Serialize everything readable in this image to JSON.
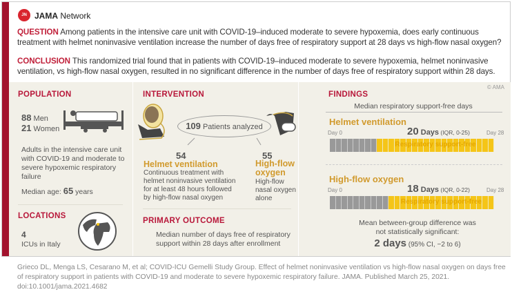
{
  "header": {
    "brand_bold": "JAMA",
    "brand_rest": " Network",
    "logo_text": "JN"
  },
  "question": {
    "label": "QUESTION",
    "text": " Among patients in the intensive care unit with COVID-19–induced moderate to severe hypoxemia, does early continuous treatment with helmet noninvasive ventilation increase the number of days free of respiratory support at 28 days vs high-flow nasal oxygen?"
  },
  "conclusion": {
    "label": "CONCLUSION",
    "text": " This randomized trial found that in patients with COVID-19–induced moderate to severe hypoxemia, helmet noninvasive ventilation, vs high-flow nasal oxygen, resulted in no significant difference in the number of days free of respiratory support within 28 days."
  },
  "population": {
    "title": "POPULATION",
    "men_n": "88",
    "men": " Men",
    "women_n": "21",
    "women": " Women",
    "desc": "Adults in the intensive care unit with COVID-19 and moderate to severe hypoxemic respiratory failure",
    "age_label": "Median age: ",
    "age": "65",
    "age_unit": " years"
  },
  "locations": {
    "title": "LOCATIONS",
    "n": "4",
    "text": "ICUs in Italy"
  },
  "intervention": {
    "title": "INTERVENTION",
    "total_n": "109",
    "total": " Patients analyzed",
    "helmet": {
      "n": "54",
      "name": "Helmet ventilation",
      "desc": "Continuous treatment with helmet noninvasive ventilation for at least 48 hours followed by high-flow nasal oxygen"
    },
    "hfo": {
      "n": "55",
      "name": "High-flow oxygen",
      "desc": "High-flow nasal oxygen alone"
    }
  },
  "primary_outcome": {
    "title": "PRIMARY OUTCOME",
    "text": "Median number of days free of respiratory support within 28 days after enrollment"
  },
  "findings": {
    "title": "FINDINGS",
    "copyright": "© AMA",
    "subtitle": "Median respiratory support-free days",
    "day0": "Day 0",
    "day28": "Day 28",
    "total_days": 28,
    "groups": [
      {
        "name": "Helmet ventilation",
        "days": 20,
        "days_label": "20",
        "unit": " Days",
        "iqr": " (IQR, 0-25)",
        "bar_label": "Respiratory support-free"
      },
      {
        "name": "High-flow oxygen",
        "days": 18,
        "days_label": "18",
        "unit": " Days",
        "iqr": " (IQR, 0-22)",
        "bar_label": "Respiratory support-free"
      }
    ],
    "difference_text": "Mean between-group difference was not statistically significant:",
    "difference": "2 days",
    "ci": " (95% CI, −2 to 6)"
  },
  "colors": {
    "accent_red": "#b8173a",
    "gold": "#d19a2d",
    "bar_yellow": "#f5c518",
    "bar_gray": "#999999",
    "panel": "#f2f0e8"
  },
  "footer": {
    "citation": "Grieco DL, Menga LS, Cesarano M, et al; COVID-ICU Gemelli Study Group. Effect of helmet noninvasive ventilation vs high-flow nasal oxygen on days free of respiratory support in patients with COVID-19 and moderate to severe hypoxemic respiratory failure. JAMA. Published March 25, 2021. doi:10.1001/jama.2021.4682"
  }
}
